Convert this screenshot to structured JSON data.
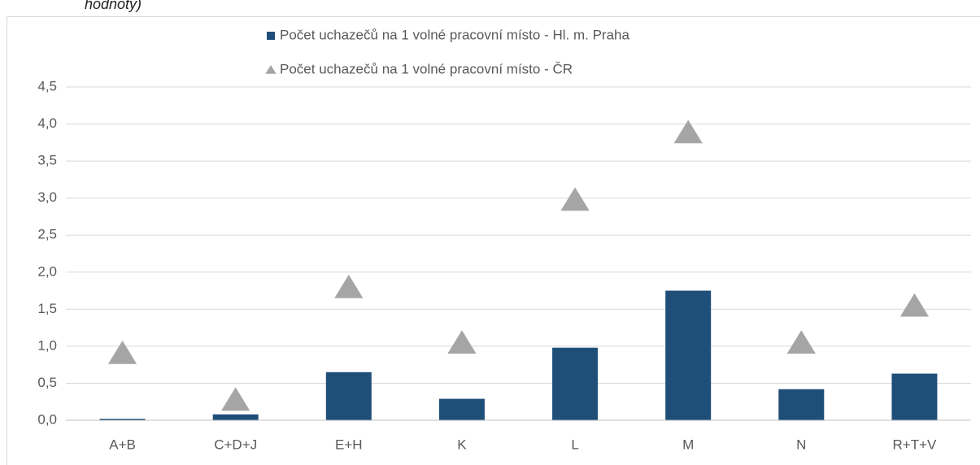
{
  "chart_data": {
    "type": "bar",
    "title": "hodnoty)",
    "categories": [
      "A+B",
      "C+D+J",
      "E+H",
      "K",
      "L",
      "M",
      "N",
      "R+T+V"
    ],
    "series": [
      {
        "name": "Počet uchazečů na 1 volné pracovní místo - Hl. m. Praha",
        "type": "bar",
        "color": "#1f4e79",
        "values": [
          0.02,
          0.08,
          0.65,
          0.29,
          0.98,
          1.75,
          0.42,
          0.63
        ]
      },
      {
        "name": "Počet uchazečů na 1 volné pracovní místo - ČR",
        "type": "scatter",
        "marker": "triangle",
        "color": "#a5a5a5",
        "values": [
          0.9,
          0.27,
          1.79,
          1.04,
          2.97,
          3.88,
          1.04,
          1.54
        ]
      }
    ],
    "ylim": [
      0,
      4.5
    ],
    "yticks": [
      {
        "value": 0,
        "label": "0,0"
      },
      {
        "value": 0.5,
        "label": "0,5"
      },
      {
        "value": 1,
        "label": "1,0"
      },
      {
        "value": 1.5,
        "label": "1,5"
      },
      {
        "value": 2,
        "label": "2,0"
      },
      {
        "value": 2.5,
        "label": "2,5"
      },
      {
        "value": 3,
        "label": "3,0"
      },
      {
        "value": 3.5,
        "label": "3,5"
      },
      {
        "value": 4,
        "label": "4,0"
      },
      {
        "value": 4.5,
        "label": "4,5"
      }
    ],
    "grid": true,
    "legend": "top"
  }
}
